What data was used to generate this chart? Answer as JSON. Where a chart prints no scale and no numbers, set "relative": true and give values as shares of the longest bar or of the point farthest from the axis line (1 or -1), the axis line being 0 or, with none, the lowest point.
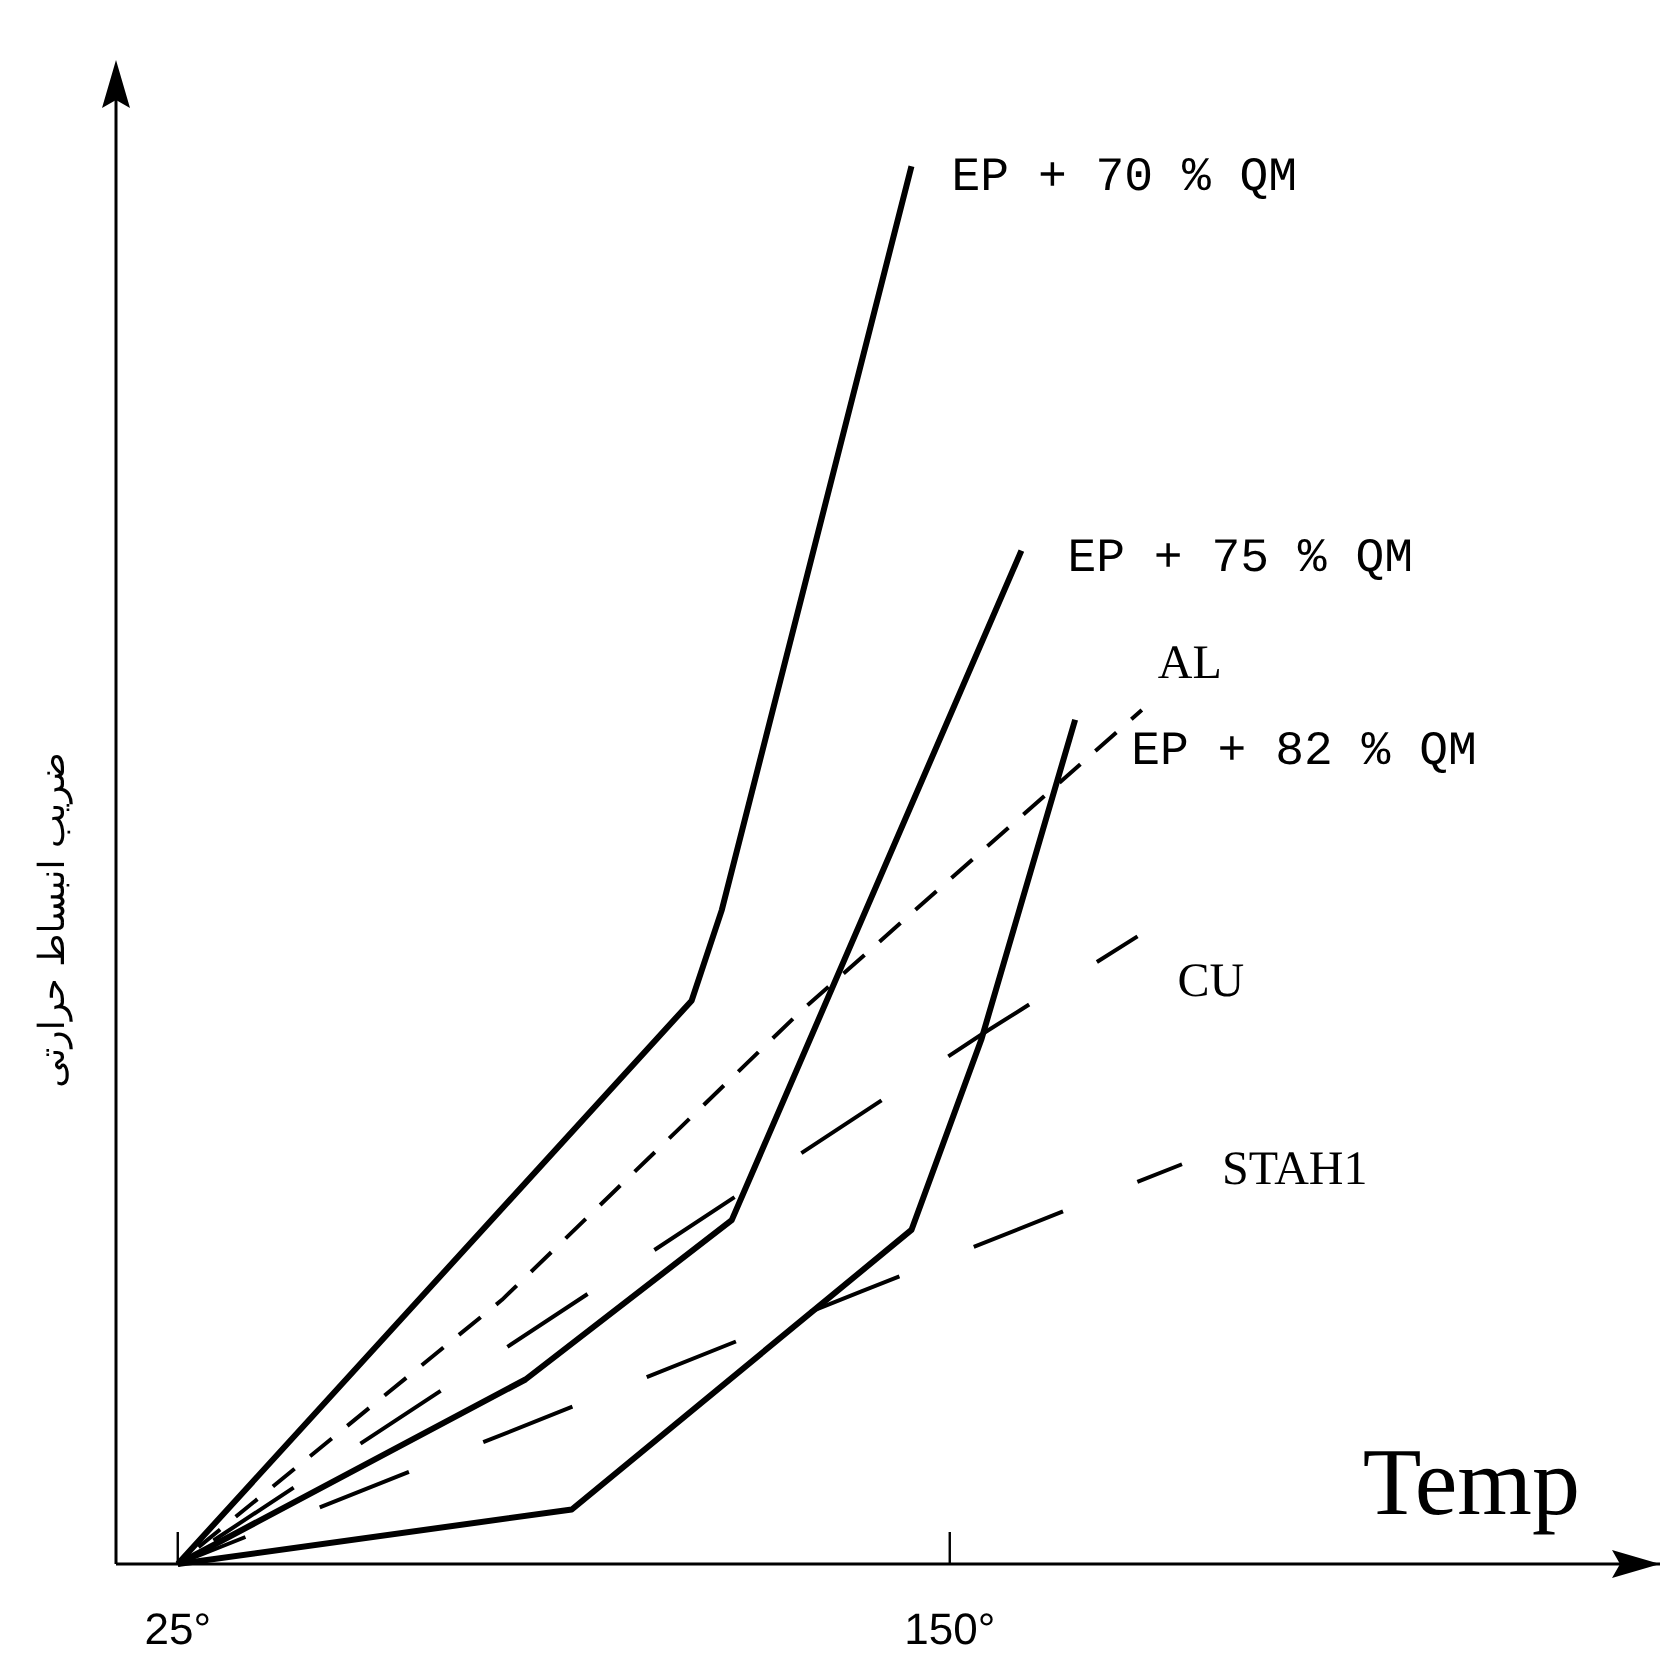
{
  "chart_data": {
    "type": "line",
    "relative": true,
    "xlabel": "Temp",
    "ylabel": "ضریب انبساط حرارتی",
    "xlim": [
      15,
      265
    ],
    "xticks": [
      {
        "value": 25,
        "label": "25°"
      },
      {
        "value": 150,
        "label": "150°"
      }
    ],
    "grid": false,
    "marker": "none",
    "series": [
      {
        "name": "EP + 70 % QM",
        "color": "#000000",
        "line_style": "solid",
        "x": [
          25,
          108.2,
          113.1,
          143.8
        ],
        "values": [
          0,
          0.403,
          0.468,
          1
        ]
      },
      {
        "name": "EP + 75 % QM",
        "color": "#000000",
        "line_style": "solid",
        "x": [
          25,
          81.3,
          114.7,
          161.6
        ],
        "values": [
          0,
          0.132,
          0.246,
          0.725
        ]
      },
      {
        "name": "AL",
        "color": "#000000",
        "line_style": "dashed",
        "x": [
          25,
          77.5,
          126.0,
          181.1
        ],
        "values": [
          0,
          0.189,
          0.396,
          0.611
        ]
      },
      {
        "name": "EP + 82 % QM",
        "color": "#000000",
        "line_style": "solid",
        "x": [
          25,
          88.8,
          143.8,
          155.1,
          170.3
        ],
        "values": [
          0,
          0.039,
          0.239,
          0.375,
          0.604
        ]
      },
      {
        "name": "CU",
        "color": "#000000",
        "line_style": "dashed",
        "x": [
          25,
          155.2,
          180.4
        ],
        "values": [
          0,
          0.379,
          0.449
        ]
      },
      {
        "name": "STAH1",
        "color": "#000000",
        "line_style": "dashed",
        "x": [
          25,
          135.7,
          187.6
        ],
        "values": [
          0,
          0.195,
          0.286
        ]
      }
    ]
  }
}
